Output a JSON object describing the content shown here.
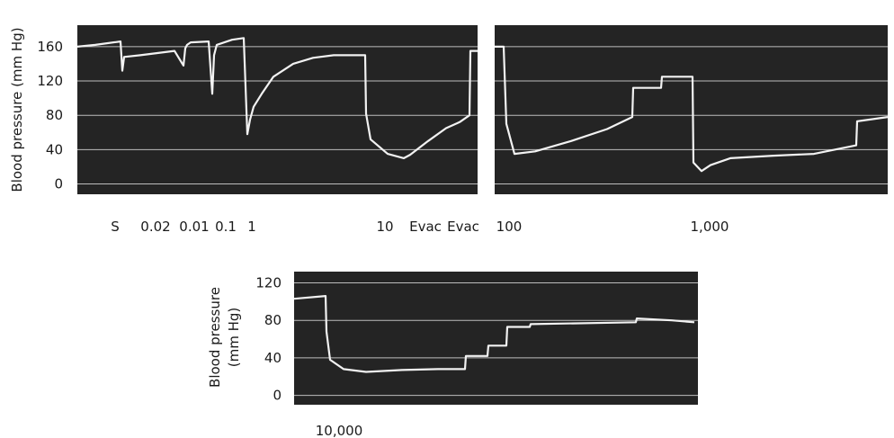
{
  "chart_data": [
    {
      "type": "line",
      "ylabel": "Blood pressure (mm Hg)",
      "ylim": [
        -12,
        185
      ],
      "yticks": [
        0,
        40,
        80,
        120,
        160
      ],
      "dose_labels": [
        "S",
        "0.02",
        "0.01",
        "0.1",
        "1",
        "10",
        "Evac",
        "Evac",
        "100",
        "1,000"
      ],
      "panels": [
        {
          "segment": "left",
          "series": [
            {
              "x": [
                0,
                20,
                48,
                50,
                52,
                70,
                108,
                118,
                120,
                122,
                126,
                146,
                150,
                152,
                155,
                172,
                185,
                189,
                192,
                196,
                205,
                218,
                240,
                262,
                285,
                305,
                320,
                321,
                326,
                345,
                363,
                370,
                390,
                410,
                425,
                436,
                437,
                445
              ],
              "y": [
                160,
                162,
                166,
                132,
                148,
                150,
                155,
                138,
                158,
                162,
                165,
                166,
                105,
                150,
                162,
                168,
                170,
                58,
                75,
                90,
                105,
                125,
                140,
                147,
                150,
                150,
                150,
                82,
                52,
                35,
                30,
                34,
                50,
                65,
                72,
                80,
                155,
                155
              ]
            }
          ]
        },
        {
          "segment": "middle",
          "series": [
            {
              "x": [
                0,
                10,
                13,
                22,
                45,
                85,
                125,
                153,
                154,
                185,
                186,
                220,
                221,
                230,
                240,
                262,
                310,
                355,
                402,
                403,
                437
              ],
              "y": [
                160,
                160,
                70,
                35,
                38,
                50,
                64,
                78,
                112,
                112,
                125,
                125,
                25,
                15,
                22,
                30,
                33,
                35,
                45,
                73,
                78
              ]
            }
          ]
        },
        {
          "segment": "bottom",
          "ylabel": "Blood pressure (mm Hg)",
          "ylim": [
            -10,
            132
          ],
          "yticks": [
            0,
            40,
            80,
            120
          ],
          "dose_labels": [
            "10,000"
          ],
          "series": [
            {
              "x": [
                0,
                35,
                36,
                40,
                55,
                80,
                120,
                160,
                190,
                191,
                215,
                216,
                236,
                237,
                262,
                263,
                380,
                381,
                420,
                445
              ],
              "y": [
                103,
                106,
                68,
                38,
                28,
                25,
                27,
                28,
                28,
                42,
                42,
                53,
                53,
                73,
                73,
                76,
                78,
                82,
                80,
                78
              ]
            }
          ]
        }
      ]
    }
  ]
}
